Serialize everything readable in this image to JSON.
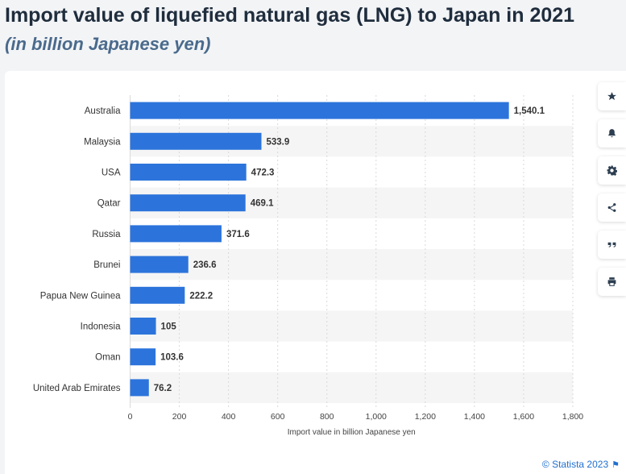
{
  "title": "Import value of liquefied natural gas (LNG) to Japan in 2021",
  "subtitle": "(in billion Japanese yen)",
  "footer": {
    "credit": "© Statista 2023"
  },
  "toolbar": [
    "star-icon",
    "bell-icon",
    "gear-icon",
    "share-icon",
    "quote-icon",
    "print-icon"
  ],
  "colors": {
    "bar": "#2c74db",
    "band": "#f5f5f5"
  },
  "chart_data": {
    "type": "bar",
    "orientation": "horizontal",
    "categories": [
      "Australia",
      "Malaysia",
      "USA",
      "Qatar",
      "Russia",
      "Brunei",
      "Papua New Guinea",
      "Indonesia",
      "Oman",
      "United Arab Emirates"
    ],
    "values": [
      1540.1,
      533.9,
      472.3,
      469.1,
      371.6,
      236.6,
      222.2,
      105,
      103.6,
      76.2
    ],
    "value_labels": [
      "1,540.1",
      "533.9",
      "472.3",
      "469.1",
      "371.6",
      "236.6",
      "222.2",
      "105",
      "103.6",
      "76.2"
    ],
    "xlabel": "Import value in billion Japanese yen",
    "ylabel": "",
    "xlim": [
      0,
      1800
    ],
    "xticks": [
      0,
      200,
      400,
      600,
      800,
      1000,
      1200,
      1400,
      1600,
      1800
    ],
    "xtick_labels": [
      "0",
      "200",
      "400",
      "600",
      "800",
      "1,000",
      "1,200",
      "1,400",
      "1,600",
      "1,800"
    ],
    "grid": true,
    "legend": "none"
  }
}
